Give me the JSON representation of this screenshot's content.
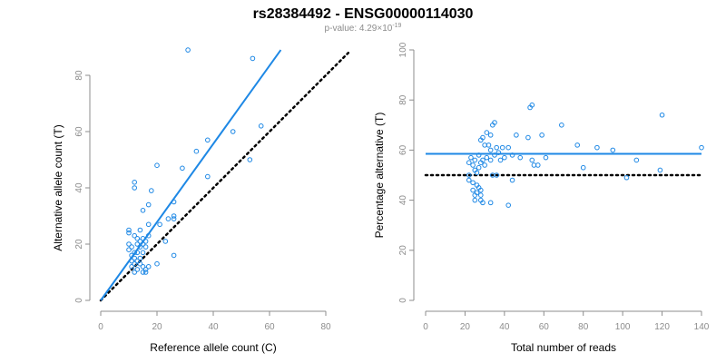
{
  "title": "rs28384492 - ENSG00000114030",
  "subtitle": {
    "prefix": "p-value: 4.29×10",
    "exponent": "-19"
  },
  "colors": {
    "points": "#1e88e5",
    "fit": "#1e88e5",
    "reference": "#000000",
    "axis": "#8c8c8c"
  },
  "chart_data": [
    {
      "type": "scatter",
      "xlabel": "Reference allele count (C)",
      "ylabel": "Alternative allele count (T)",
      "xlim": [
        0,
        80
      ],
      "ylim": [
        0,
        80
      ],
      "xticks": [
        "0",
        "20",
        "40",
        "60",
        "80"
      ],
      "yticks": [
        "0",
        "20",
        "40",
        "60",
        "80"
      ],
      "fit_line": {
        "from": [
          0,
          0
        ],
        "to": [
          64,
          89
        ]
      },
      "reference_line": {
        "from": [
          0,
          0
        ],
        "to": [
          88,
          88
        ]
      },
      "points": [
        [
          31,
          89
        ],
        [
          54,
          86
        ],
        [
          57,
          62
        ],
        [
          47,
          60
        ],
        [
          38,
          57
        ],
        [
          34,
          53
        ],
        [
          53,
          50
        ],
        [
          20,
          48
        ],
        [
          29,
          47
        ],
        [
          38,
          44
        ],
        [
          12,
          42
        ],
        [
          12,
          40
        ],
        [
          18,
          39
        ],
        [
          26,
          35
        ],
        [
          17,
          34
        ],
        [
          15,
          32
        ],
        [
          26,
          30
        ],
        [
          24,
          29
        ],
        [
          21,
          27
        ],
        [
          26,
          29
        ],
        [
          17,
          27
        ],
        [
          10,
          25
        ],
        [
          14,
          25
        ],
        [
          10,
          24
        ],
        [
          12,
          23
        ],
        [
          17,
          23
        ],
        [
          13,
          22
        ],
        [
          15,
          22
        ],
        [
          16,
          21
        ],
        [
          23,
          21
        ],
        [
          10,
          20
        ],
        [
          13,
          20
        ],
        [
          14,
          21
        ],
        [
          15,
          20
        ],
        [
          11,
          19
        ],
        [
          14,
          19
        ],
        [
          16,
          19
        ],
        [
          10,
          18
        ],
        [
          12,
          17
        ],
        [
          13,
          17
        ],
        [
          15,
          17
        ],
        [
          26,
          16
        ],
        [
          11,
          16
        ],
        [
          12,
          15
        ],
        [
          14,
          15
        ],
        [
          11,
          14
        ],
        [
          13,
          14
        ],
        [
          12,
          13
        ],
        [
          14,
          13
        ],
        [
          15,
          12
        ],
        [
          17,
          12
        ],
        [
          16,
          11
        ],
        [
          20,
          13
        ],
        [
          11,
          12
        ],
        [
          13,
          11
        ],
        [
          15,
          10
        ],
        [
          16,
          10
        ],
        [
          12,
          10
        ]
      ]
    },
    {
      "type": "scatter",
      "xlabel": "Total number of reads",
      "ylabel": "Percentage alternative (T)",
      "xlim": [
        0,
        140
      ],
      "ylim": [
        0,
        100
      ],
      "xticks": [
        "0",
        "20",
        "40",
        "60",
        "80",
        "100",
        "120",
        "140"
      ],
      "yticks": [
        "0",
        "20",
        "40",
        "60",
        "80",
        "100"
      ],
      "fit_line": {
        "y": 58.5
      },
      "reference_line": {
        "y": 50
      },
      "points": [
        [
          53,
          77
        ],
        [
          54,
          78
        ],
        [
          120,
          74
        ],
        [
          35,
          71
        ],
        [
          34,
          70
        ],
        [
          69,
          70
        ],
        [
          29,
          65
        ],
        [
          31,
          67
        ],
        [
          33,
          66
        ],
        [
          46,
          66
        ],
        [
          52,
          65
        ],
        [
          28,
          64
        ],
        [
          59,
          66
        ],
        [
          77,
          62
        ],
        [
          87,
          61
        ],
        [
          140,
          61
        ],
        [
          30,
          62
        ],
        [
          32,
          62
        ],
        [
          36,
          61
        ],
        [
          39,
          61
        ],
        [
          42,
          61
        ],
        [
          95,
          60
        ],
        [
          33,
          60
        ],
        [
          35,
          58
        ],
        [
          37,
          59
        ],
        [
          40,
          57
        ],
        [
          44,
          58
        ],
        [
          61,
          57
        ],
        [
          23,
          57
        ],
        [
          25,
          56
        ],
        [
          27,
          58
        ],
        [
          29,
          56
        ],
        [
          31,
          57
        ],
        [
          33,
          56
        ],
        [
          38,
          56
        ],
        [
          48,
          57
        ],
        [
          107,
          56
        ],
        [
          22,
          55
        ],
        [
          24,
          54
        ],
        [
          28,
          55
        ],
        [
          30,
          54
        ],
        [
          54,
          56
        ],
        [
          55,
          54
        ],
        [
          27,
          53
        ],
        [
          57,
          54
        ],
        [
          80,
          53
        ],
        [
          25,
          52
        ],
        [
          26,
          51
        ],
        [
          22,
          50
        ],
        [
          34,
          50
        ],
        [
          36,
          50
        ],
        [
          119,
          52
        ],
        [
          22,
          48
        ],
        [
          24,
          47
        ],
        [
          102,
          49
        ],
        [
          44,
          48
        ],
        [
          26,
          46
        ],
        [
          27,
          45
        ],
        [
          28,
          44
        ],
        [
          24,
          44
        ],
        [
          26,
          43
        ],
        [
          28,
          42
        ],
        [
          25,
          42
        ],
        [
          25,
          40
        ],
        [
          28,
          40
        ],
        [
          29,
          39
        ],
        [
          33,
          39
        ],
        [
          42,
          38
        ]
      ]
    }
  ]
}
